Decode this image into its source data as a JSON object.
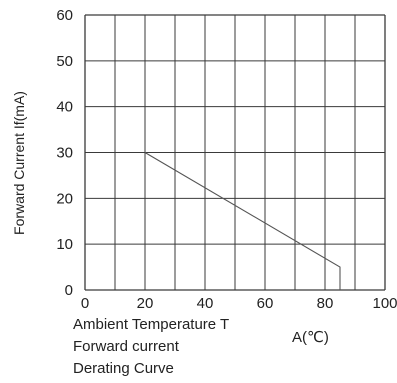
{
  "chart_data": {
    "type": "line",
    "title": "",
    "ylabel": "Forward Current If(mA)",
    "xlabel_line1": "Ambient Temperature T",
    "xlabel_unit": "A(℃)",
    "caption_line1": "Forward current",
    "caption_line2": "Derating Curve",
    "xlim": [
      0,
      100
    ],
    "ylim": [
      0,
      60
    ],
    "x_ticks": [
      0,
      20,
      40,
      60,
      80,
      100
    ],
    "y_ticks": [
      0,
      10,
      20,
      30,
      40,
      50,
      60
    ],
    "x_tick_labels": [
      "0",
      "20",
      "40",
      "60",
      "80",
      "100"
    ],
    "y_tick_labels": [
      "0",
      "10",
      "20",
      "30",
      "40",
      "50",
      "60"
    ],
    "grid_x_step": 10,
    "grid_y_step": 10,
    "grid": true,
    "series": [
      {
        "x": [
          20,
          85,
          85
        ],
        "y": [
          30,
          5,
          0
        ]
      }
    ],
    "colors": {
      "grid": "#3a3a3a",
      "line": "#555555",
      "text": "#222222"
    }
  }
}
